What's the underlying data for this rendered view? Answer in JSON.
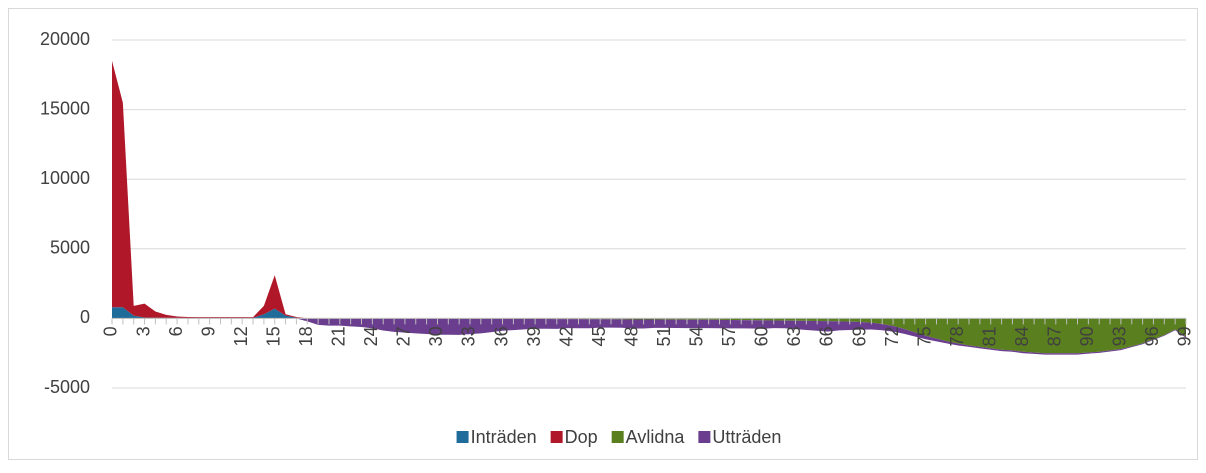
{
  "chart_data": {
    "type": "stacked-area",
    "x": [
      0,
      1,
      2,
      3,
      4,
      5,
      6,
      7,
      8,
      9,
      10,
      11,
      12,
      13,
      14,
      15,
      16,
      17,
      18,
      19,
      20,
      21,
      22,
      23,
      24,
      25,
      26,
      27,
      28,
      29,
      30,
      31,
      32,
      33,
      34,
      35,
      36,
      37,
      38,
      39,
      40,
      41,
      42,
      43,
      44,
      45,
      46,
      47,
      48,
      49,
      50,
      51,
      52,
      53,
      54,
      55,
      56,
      57,
      58,
      59,
      60,
      61,
      62,
      63,
      64,
      65,
      66,
      67,
      68,
      69,
      70,
      71,
      72,
      73,
      74,
      75,
      76,
      77,
      78,
      79,
      80,
      81,
      82,
      83,
      84,
      85,
      86,
      87,
      88,
      89,
      90,
      91,
      92,
      93,
      94,
      95,
      96,
      97,
      98,
      99
    ],
    "xlim": [
      0,
      99
    ],
    "xticks": [
      0,
      3,
      6,
      9,
      12,
      15,
      18,
      21,
      24,
      27,
      30,
      33,
      36,
      39,
      42,
      45,
      48,
      51,
      54,
      57,
      60,
      63,
      66,
      69,
      72,
      75,
      78,
      81,
      84,
      87,
      90,
      93,
      96,
      99
    ],
    "ylim": [
      -5000,
      20000
    ],
    "yticks": [
      -5000,
      0,
      5000,
      10000,
      15000,
      20000
    ],
    "grid": true,
    "legend": "bottom",
    "series": [
      {
        "name": "Inträden",
        "color": "#1f6b9a",
        "sign": "positive",
        "values": [
          800,
          800,
          200,
          60,
          50,
          50,
          40,
          40,
          40,
          40,
          40,
          40,
          40,
          40,
          300,
          700,
          200,
          50,
          0,
          0,
          0,
          0,
          0,
          0,
          0,
          0,
          0,
          0,
          0,
          0,
          0,
          0,
          0,
          0,
          0,
          0,
          0,
          0,
          0,
          0,
          0,
          0,
          0,
          0,
          0,
          0,
          0,
          0,
          0,
          0,
          0,
          0,
          0,
          0,
          0,
          0,
          0,
          0,
          0,
          0,
          0,
          0,
          0,
          0,
          0,
          0,
          0,
          0,
          0,
          0,
          0,
          0,
          0,
          0,
          0,
          0,
          0,
          0,
          0,
          0,
          0,
          0,
          0,
          0,
          0,
          0,
          0,
          0,
          0,
          0,
          0,
          0,
          0,
          0,
          0,
          0,
          0,
          0,
          0,
          0
        ]
      },
      {
        "name": "Dop",
        "color": "#b0182a",
        "sign": "positive",
        "values": [
          17700,
          14700,
          700,
          1000,
          450,
          200,
          100,
          60,
          50,
          50,
          50,
          50,
          50,
          50,
          600,
          2400,
          100,
          50,
          0,
          0,
          0,
          0,
          0,
          0,
          0,
          0,
          0,
          0,
          0,
          0,
          0,
          0,
          0,
          0,
          0,
          0,
          0,
          0,
          0,
          0,
          0,
          0,
          0,
          0,
          0,
          0,
          0,
          0,
          0,
          0,
          0,
          0,
          0,
          0,
          0,
          0,
          0,
          0,
          0,
          0,
          0,
          0,
          0,
          0,
          0,
          0,
          0,
          0,
          0,
          0,
          0,
          0,
          0,
          0,
          0,
          0,
          0,
          0,
          0,
          0,
          0,
          0,
          0,
          0,
          0,
          0,
          0,
          0,
          0,
          0,
          0,
          0,
          0,
          0,
          0,
          0,
          0,
          0,
          0,
          0
        ]
      },
      {
        "name": "Avlidna",
        "color": "#5a7f1e",
        "sign": "negative",
        "values": [
          -20,
          -10,
          -5,
          -5,
          -5,
          -5,
          -5,
          -5,
          -5,
          -5,
          -5,
          -5,
          -5,
          -5,
          -5,
          -5,
          -5,
          -10,
          -10,
          -15,
          -20,
          -20,
          -20,
          -20,
          -20,
          -20,
          -20,
          -25,
          -25,
          -25,
          -25,
          -25,
          -30,
          -30,
          -30,
          -35,
          -35,
          -40,
          -40,
          -45,
          -45,
          -50,
          -50,
          -55,
          -60,
          -60,
          -65,
          -70,
          -75,
          -80,
          -80,
          -85,
          -90,
          -95,
          -100,
          -100,
          -110,
          -115,
          -120,
          -130,
          -140,
          -150,
          -160,
          -170,
          -180,
          -190,
          -200,
          -210,
          -230,
          -260,
          -300,
          -400,
          -550,
          -750,
          -1000,
          -1250,
          -1450,
          -1650,
          -1800,
          -1950,
          -2050,
          -2150,
          -2250,
          -2300,
          -2400,
          -2450,
          -2500,
          -2500,
          -2500,
          -2500,
          -2450,
          -2400,
          -2300,
          -2200,
          -2000,
          -1800,
          -1500,
          -1200,
          -800,
          -1300
        ]
      },
      {
        "name": "Utträden",
        "color": "#6a3d8f",
        "sign": "negative",
        "values": [
          0,
          0,
          0,
          0,
          0,
          0,
          0,
          0,
          0,
          0,
          0,
          0,
          0,
          0,
          0,
          0,
          0,
          0,
          -200,
          -450,
          -500,
          -500,
          -550,
          -600,
          -700,
          -850,
          -950,
          -1000,
          -1050,
          -1100,
          -1150,
          -1150,
          -1150,
          -1100,
          -1050,
          -950,
          -850,
          -800,
          -750,
          -700,
          -700,
          -700,
          -650,
          -650,
          -650,
          -600,
          -600,
          -600,
          -650,
          -650,
          -600,
          -600,
          -600,
          -600,
          -600,
          -600,
          -600,
          -600,
          -600,
          -600,
          -600,
          -550,
          -550,
          -600,
          -650,
          -700,
          -750,
          -650,
          -600,
          -550,
          -500,
          -450,
          -400,
          -350,
          -300,
          -250,
          -200,
          -150,
          -150,
          -100,
          -100,
          -100,
          -100,
          -100,
          -100,
          -100,
          -100,
          -100,
          -100,
          -100,
          -80,
          -80,
          -80,
          -80,
          -60,
          -60,
          -50,
          -50,
          -50,
          -100
        ]
      }
    ]
  }
}
